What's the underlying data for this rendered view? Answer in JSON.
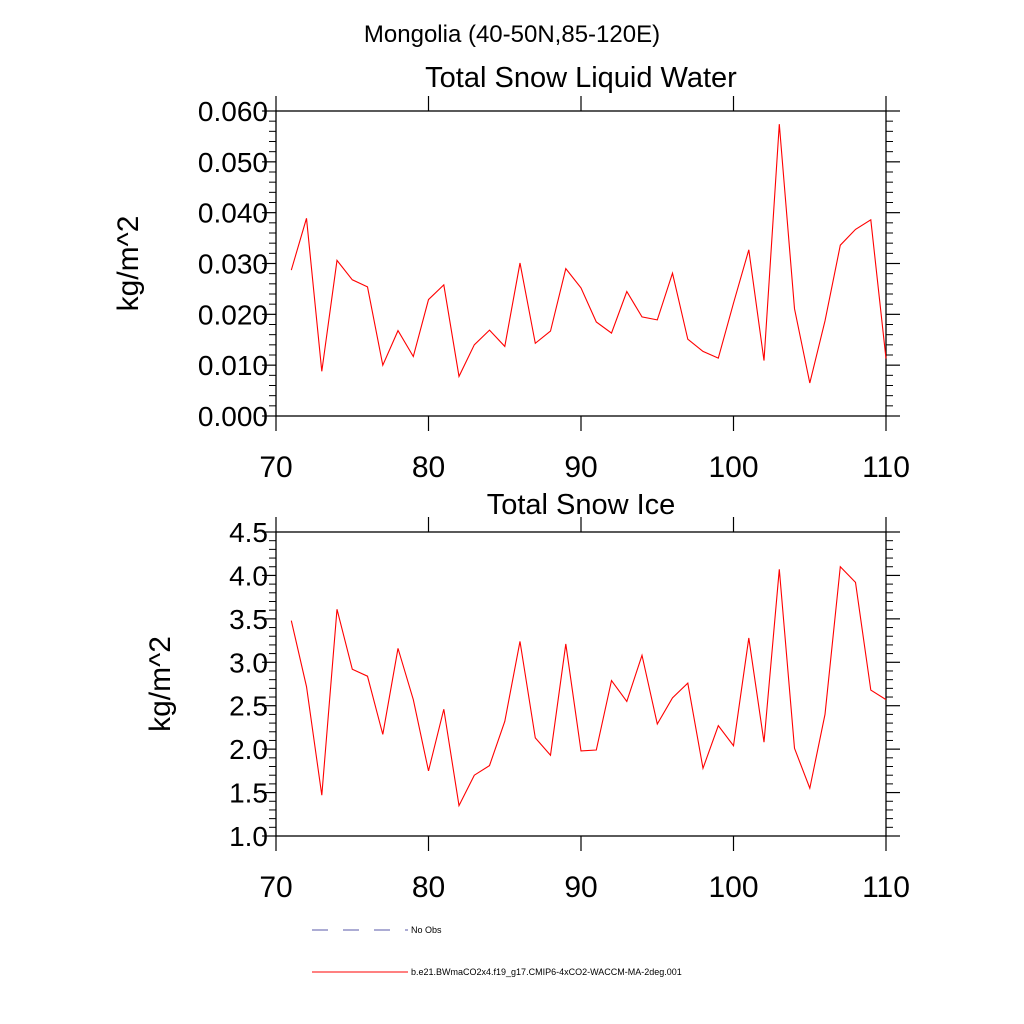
{
  "figure_title": "Mongolia (40-50N,85-120E)",
  "colors": {
    "model_line": "#ff0000",
    "obs_line": "#5a5aa8",
    "axis": "#000000"
  },
  "chart_data": [
    {
      "type": "line",
      "title": "Total Snow Liquid Water",
      "xlabel": "",
      "ylabel": "kg/m^2",
      "xlim": [
        70,
        110
      ],
      "ylim": [
        0.0,
        0.06
      ],
      "xticks": [
        70,
        80,
        90,
        100,
        110
      ],
      "xtick_labels": [
        "70",
        "80",
        "90",
        "100",
        "110"
      ],
      "yticks": [
        0.0,
        0.01,
        0.02,
        0.03,
        0.04,
        0.05,
        0.06
      ],
      "ytick_labels": [
        "0.000",
        "0.010",
        "0.020",
        "0.030",
        "0.040",
        "0.050",
        "0.060"
      ],
      "grid": false,
      "series": [
        {
          "name": "b.e21.BWmaCO2x4.f19_g17.CMIP6-4xCO2-WACCM-MA-2deg.001",
          "x": [
            71,
            72,
            73,
            74,
            75,
            76,
            77,
            78,
            79,
            80,
            81,
            82,
            83,
            84,
            85,
            86,
            87,
            88,
            89,
            90,
            91,
            92,
            93,
            94,
            95,
            96,
            97,
            98,
            99,
            100,
            101,
            102,
            103,
            104,
            105,
            106,
            107,
            108,
            109,
            110
          ],
          "values": [
            0.0287,
            0.0389,
            0.0088,
            0.0306,
            0.0268,
            0.0254,
            0.01,
            0.0168,
            0.0117,
            0.0229,
            0.0258,
            0.0078,
            0.014,
            0.0169,
            0.0137,
            0.0301,
            0.0143,
            0.0167,
            0.029,
            0.0252,
            0.0185,
            0.0163,
            0.0245,
            0.0195,
            0.0189,
            0.0281,
            0.0151,
            0.0127,
            0.0114,
            0.0222,
            0.0327,
            0.0109,
            0.0574,
            0.0211,
            0.0065,
            0.0187,
            0.0336,
            0.0367,
            0.0386,
            0.0113
          ]
        }
      ]
    },
    {
      "type": "line",
      "title": "Total Snow Ice",
      "xlabel": "",
      "ylabel": "kg/m^2",
      "xlim": [
        70,
        110
      ],
      "ylim": [
        1.0,
        4.5
      ],
      "xticks": [
        70,
        80,
        90,
        100,
        110
      ],
      "xtick_labels": [
        "70",
        "80",
        "90",
        "100",
        "110"
      ],
      "yticks": [
        1.0,
        1.5,
        2.0,
        2.5,
        3.0,
        3.5,
        4.0,
        4.5
      ],
      "ytick_labels": [
        "1.0",
        "1.5",
        "2.0",
        "2.5",
        "3.0",
        "3.5",
        "4.0",
        "4.5"
      ],
      "grid": false,
      "series": [
        {
          "name": "b.e21.BWmaCO2x4.f19_g17.CMIP6-4xCO2-WACCM-MA-2deg.001",
          "x": [
            71,
            72,
            73,
            74,
            75,
            76,
            77,
            78,
            79,
            80,
            81,
            82,
            83,
            84,
            85,
            86,
            87,
            88,
            89,
            90,
            91,
            92,
            93,
            94,
            95,
            96,
            97,
            98,
            99,
            100,
            101,
            102,
            103,
            104,
            105,
            106,
            107,
            108,
            109,
            110
          ],
          "values": [
            3.48,
            2.72,
            1.47,
            3.61,
            2.92,
            2.84,
            2.17,
            3.16,
            2.57,
            1.75,
            2.46,
            1.35,
            1.7,
            1.81,
            2.32,
            3.24,
            2.13,
            1.93,
            3.21,
            1.98,
            1.99,
            2.79,
            2.55,
            3.08,
            2.29,
            2.59,
            2.76,
            1.78,
            2.27,
            2.04,
            3.28,
            2.08,
            4.07,
            2.01,
            1.55,
            2.4,
            4.1,
            3.92,
            2.68,
            2.57
          ]
        }
      ]
    }
  ],
  "legend": {
    "placement": "bottom-left",
    "entries": [
      {
        "label": "No Obs",
        "style": "dashed",
        "color": "#5a5aa8"
      },
      {
        "label": "b.e21.BWmaCO2x4.f19_g17.CMIP6-4xCO2-WACCM-MA-2deg.001",
        "style": "solid",
        "color": "#ff0000"
      }
    ]
  }
}
